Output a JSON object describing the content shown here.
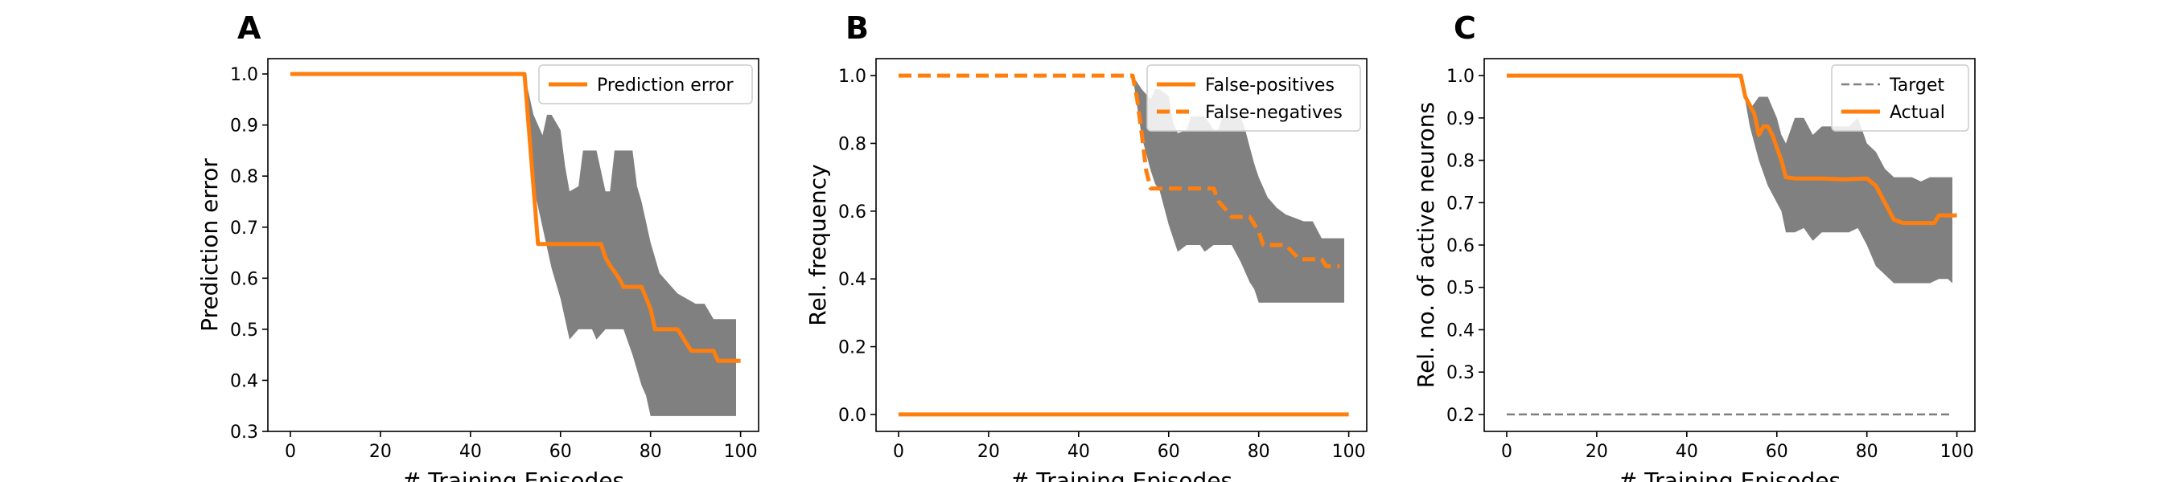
{
  "colors": {
    "orange": "#ff7f0e",
    "band": "#808080",
    "target": "#7f7f7f"
  },
  "chart_data": [
    {
      "panel": "A",
      "type": "line",
      "xlabel": "# Training Episodes",
      "ylabel": "Prediction error",
      "xlim": [
        -5,
        104
      ],
      "ylim": [
        0.3,
        1.03
      ],
      "xticks": [
        0,
        20,
        40,
        60,
        80,
        100
      ],
      "yticks": [
        0.3,
        0.4,
        0.5,
        0.6,
        0.7,
        0.8,
        0.9,
        1.0
      ],
      "ytick_labels": [
        "0.3",
        "0.4",
        "0.5",
        "0.6",
        "0.7",
        "0.8",
        "0.9",
        "1.0"
      ],
      "legend_position": "top-right",
      "band": {
        "x": [
          0,
          52,
          54,
          56,
          57,
          58,
          60,
          61,
          62,
          64,
          65,
          66,
          67,
          68,
          70,
          71,
          72,
          74,
          76,
          77,
          78,
          79,
          80,
          82,
          84,
          86,
          88,
          90,
          92,
          94,
          96,
          98,
          99
        ],
        "upper": [
          1.0,
          1.0,
          0.92,
          0.88,
          0.92,
          0.92,
          0.89,
          0.82,
          0.77,
          0.78,
          0.85,
          0.85,
          0.85,
          0.85,
          0.77,
          0.77,
          0.85,
          0.85,
          0.85,
          0.78,
          0.75,
          0.71,
          0.67,
          0.61,
          0.59,
          0.57,
          0.56,
          0.55,
          0.55,
          0.52,
          0.52,
          0.52,
          0.52
        ],
        "lower": [
          1.0,
          1.0,
          0.78,
          0.7,
          0.66,
          0.62,
          0.56,
          0.52,
          0.48,
          0.5,
          0.5,
          0.5,
          0.5,
          0.48,
          0.5,
          0.5,
          0.5,
          0.5,
          0.45,
          0.42,
          0.39,
          0.37,
          0.33,
          0.33,
          0.33,
          0.33,
          0.33,
          0.33,
          0.33,
          0.33,
          0.33,
          0.33,
          0.33
        ]
      },
      "series": [
        {
          "name": "Prediction error",
          "style": "solid",
          "x": [
            0,
            52,
            55,
            56,
            69,
            70,
            71,
            73,
            74,
            78,
            80,
            81,
            85,
            86,
            89,
            90,
            94,
            95,
            100
          ],
          "y": [
            1.0,
            1.0,
            0.667,
            0.667,
            0.667,
            0.64,
            0.625,
            0.6,
            0.583,
            0.583,
            0.54,
            0.5,
            0.5,
            0.5,
            0.458,
            0.458,
            0.458,
            0.438,
            0.438
          ]
        }
      ]
    },
    {
      "panel": "B",
      "type": "line",
      "xlabel": "# Training Episodes",
      "ylabel": "Rel. frequency",
      "xlim": [
        -5,
        104
      ],
      "ylim": [
        -0.05,
        1.05
      ],
      "xticks": [
        0,
        20,
        40,
        60,
        80,
        100
      ],
      "yticks": [
        0.0,
        0.2,
        0.4,
        0.6,
        0.8,
        1.0
      ],
      "ytick_labels": [
        "0.0",
        "0.2",
        "0.4",
        "0.6",
        "0.8",
        "1.0"
      ],
      "legend_position": "top-right",
      "band": {
        "x": [
          0,
          52,
          54,
          56,
          57,
          58,
          60,
          61,
          62,
          64,
          65,
          66,
          67,
          68,
          70,
          71,
          72,
          74,
          76,
          77,
          78,
          79,
          80,
          82,
          84,
          86,
          88,
          90,
          92,
          94,
          96,
          98,
          99
        ],
        "upper": [
          1.0,
          1.0,
          0.96,
          0.93,
          0.96,
          0.96,
          0.94,
          0.86,
          0.83,
          0.84,
          0.88,
          0.88,
          0.88,
          0.88,
          0.84,
          0.84,
          0.88,
          0.88,
          0.88,
          0.84,
          0.79,
          0.74,
          0.7,
          0.64,
          0.61,
          0.59,
          0.58,
          0.57,
          0.57,
          0.52,
          0.52,
          0.52,
          0.52
        ],
        "lower": [
          1.0,
          1.0,
          0.82,
          0.72,
          0.68,
          0.66,
          0.56,
          0.52,
          0.48,
          0.5,
          0.5,
          0.5,
          0.5,
          0.48,
          0.5,
          0.5,
          0.5,
          0.5,
          0.45,
          0.42,
          0.39,
          0.37,
          0.33,
          0.33,
          0.33,
          0.33,
          0.33,
          0.33,
          0.33,
          0.33,
          0.33,
          0.33,
          0.33
        ]
      },
      "series": [
        {
          "name": "False-positives",
          "style": "solid",
          "x": [
            0,
            100
          ],
          "y": [
            0.0,
            0.0
          ]
        },
        {
          "name": "False-negatives",
          "style": "dashed",
          "x": [
            0,
            52,
            53,
            54,
            55,
            56,
            70,
            71,
            73,
            74,
            78,
            80,
            81,
            85,
            86,
            89,
            90,
            94,
            95,
            98
          ],
          "y": [
            1.0,
            1.0,
            0.93,
            0.83,
            0.72,
            0.667,
            0.667,
            0.63,
            0.6,
            0.583,
            0.583,
            0.54,
            0.5,
            0.5,
            0.5,
            0.458,
            0.458,
            0.458,
            0.438,
            0.438
          ]
        }
      ]
    },
    {
      "panel": "C",
      "type": "line",
      "xlabel": "# Training Episodes",
      "ylabel": "Rel. no. of active neurons",
      "xlim": [
        -5,
        104
      ],
      "ylim": [
        0.16,
        1.04
      ],
      "xticks": [
        0,
        20,
        40,
        60,
        80,
        100
      ],
      "yticks": [
        0.2,
        0.3,
        0.4,
        0.5,
        0.6,
        0.7,
        0.8,
        0.9,
        1.0
      ],
      "ytick_labels": [
        "0.2",
        "0.3",
        "0.4",
        "0.5",
        "0.6",
        "0.7",
        "0.8",
        "0.9",
        "1.0"
      ],
      "legend_position": "top-right",
      "band": {
        "x": [
          0,
          52,
          54,
          56,
          58,
          60,
          61,
          62,
          64,
          66,
          68,
          70,
          72,
          74,
          76,
          78,
          80,
          82,
          84,
          86,
          88,
          90,
          92,
          94,
          96,
          98,
          99
        ],
        "upper": [
          1.0,
          1.0,
          0.92,
          0.95,
          0.95,
          0.9,
          0.86,
          0.84,
          0.9,
          0.9,
          0.86,
          0.88,
          0.88,
          0.88,
          0.88,
          0.9,
          0.84,
          0.82,
          0.78,
          0.76,
          0.76,
          0.76,
          0.75,
          0.76,
          0.76,
          0.76,
          0.76
        ],
        "lower": [
          1.0,
          1.0,
          0.88,
          0.8,
          0.74,
          0.7,
          0.68,
          0.63,
          0.63,
          0.64,
          0.61,
          0.63,
          0.63,
          0.63,
          0.63,
          0.64,
          0.6,
          0.55,
          0.53,
          0.51,
          0.51,
          0.51,
          0.51,
          0.51,
          0.52,
          0.52,
          0.51
        ]
      },
      "series": [
        {
          "name": "Target",
          "style": "dashed-thin",
          "x": [
            0,
            99
          ],
          "y": [
            0.2,
            0.2
          ]
        },
        {
          "name": "Actual",
          "style": "solid",
          "x": [
            0,
            52,
            53,
            55,
            56,
            57,
            58,
            59,
            61,
            62,
            64,
            66,
            70,
            75,
            80,
            82,
            84,
            86,
            88,
            90,
            95,
            96,
            100
          ],
          "y": [
            1.0,
            1.0,
            0.95,
            0.91,
            0.86,
            0.88,
            0.88,
            0.86,
            0.8,
            0.76,
            0.757,
            0.757,
            0.757,
            0.755,
            0.757,
            0.74,
            0.7,
            0.66,
            0.652,
            0.652,
            0.652,
            0.67,
            0.67
          ]
        }
      ]
    }
  ]
}
